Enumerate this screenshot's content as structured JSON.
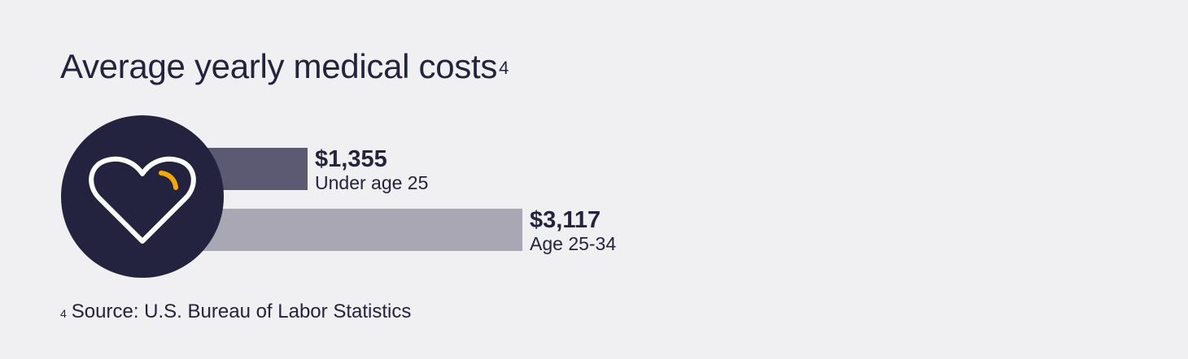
{
  "title": "Average yearly medical costs",
  "title_footnote_marker": "4",
  "chart_data": {
    "type": "bar",
    "orientation": "horizontal",
    "title": "Average yearly medical costs",
    "xlabel": "",
    "ylabel": "",
    "grid": false,
    "xlim": [
      0,
      3117
    ],
    "categories": [
      "Under age 25",
      "Age 25-34"
    ],
    "values": [
      1355,
      3117
    ],
    "value_labels": [
      "$1,355",
      "$3,117"
    ],
    "colors": [
      "#5b5a72",
      "#a8a7b3"
    ],
    "icon": "heart-icon",
    "icon_circle_color": "#23233f",
    "icon_accent_color": "#f5a800"
  },
  "footnote": {
    "marker": "4",
    "text": "Source: U.S. Bureau of Labor Statistics"
  }
}
